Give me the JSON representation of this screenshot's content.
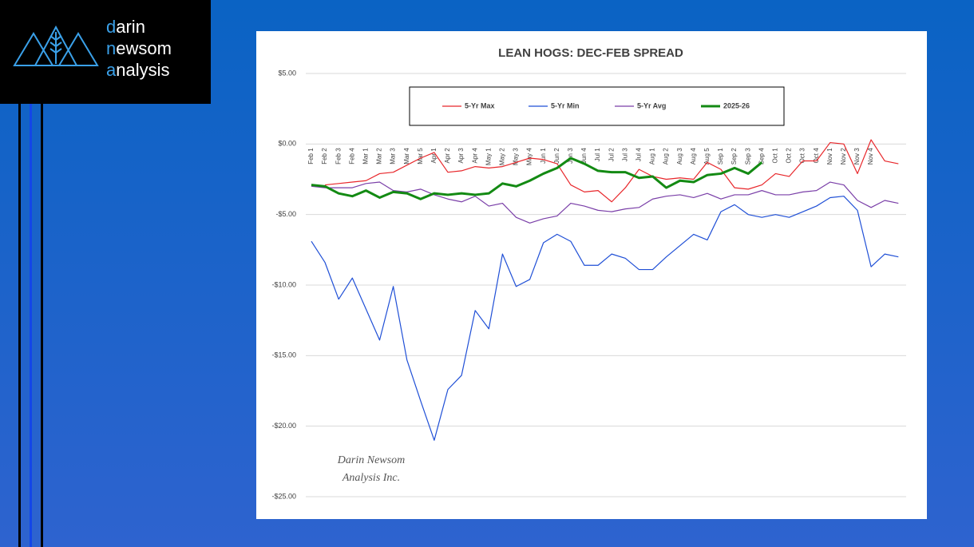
{
  "logo": {
    "lines": [
      "darin",
      "newsom",
      "analysis"
    ]
  },
  "chart_data": {
    "type": "line",
    "title": "LEAN HOGS: DEC-FEB SPREAD",
    "watermark": [
      "Darin Newsom",
      "Analysis Inc."
    ],
    "categories": [
      "Feb 1",
      "Feb 2",
      "Feb 3",
      "Feb 4",
      "Mar 1",
      "Mar 2",
      "Mar 3",
      "Mar 4",
      "Mar 5",
      "Apr 1",
      "Apr 2",
      "Apr 3",
      "Apr 4",
      "May 1",
      "May 2",
      "May 3",
      "May 4",
      "Jun 1",
      "Jun 2",
      "Jun 3",
      "Jun 4",
      "Jul 1",
      "Jul 2",
      "Jul 3",
      "Jul 4",
      "Aug 1",
      "Aug 2",
      "Aug 3",
      "Aug 4",
      "Aug 5",
      "Sep 1",
      "Sep 2",
      "Sep 3",
      "Sep 4",
      "Oct 1",
      "Oct 2",
      "Oct 3",
      "Oct 4",
      "Nov 1",
      "Nov 2",
      "Nov 3",
      "Nov 4",
      null,
      null
    ],
    "series": [
      {
        "name": "5-Yr Max",
        "color": "#e8262a",
        "width": 1.2,
        "values": [
          null,
          -2.9,
          -2.8,
          -2.7,
          -2.6,
          -2.1,
          -2.0,
          -1.5,
          -1.0,
          -0.6,
          -2.0,
          -1.9,
          -1.6,
          -1.7,
          -1.6,
          -1.3,
          -1.0,
          -1.1,
          -1.4,
          -2.9,
          -3.4,
          -3.3,
          -4.1,
          -3.1,
          -1.8,
          -2.3,
          -2.5,
          -2.4,
          -2.5,
          -1.3,
          -1.8,
          -3.1,
          -3.2,
          -2.9,
          -2.1,
          -2.3,
          -1.2,
          -1.2,
          0.1,
          0.0,
          -2.1,
          0.3,
          -1.2,
          -1.4
        ]
      },
      {
        "name": "5-Yr Min",
        "color": "#1f4fd6",
        "width": 1.2,
        "values": [
          -6.9,
          -8.4,
          -11.0,
          -9.5,
          -11.7,
          -13.9,
          -10.1,
          -15.3,
          -18.2,
          -21.0,
          -17.4,
          -16.4,
          -11.8,
          -13.1,
          -7.8,
          -10.1,
          -9.6,
          -7.0,
          -6.4,
          -6.9,
          -8.6,
          -8.6,
          -7.8,
          -8.1,
          -8.9,
          -8.9,
          -8.0,
          -7.2,
          -6.4,
          -6.8,
          -4.8,
          -4.3,
          -5.0,
          -5.2,
          -5.0,
          -5.2,
          -4.8,
          -4.4,
          -3.8,
          -3.7,
          -4.7,
          -8.7,
          -7.8,
          -8.0
        ]
      },
      {
        "name": "5-Yr Avg",
        "color": "#7a3fa8",
        "width": 1.2,
        "values": [
          -3.0,
          -3.1,
          -3.1,
          -3.1,
          -2.8,
          -2.7,
          -3.3,
          -3.4,
          -3.2,
          -3.6,
          -3.9,
          -4.1,
          -3.7,
          -4.4,
          -4.2,
          -5.2,
          -5.6,
          -5.3,
          -5.1,
          -4.2,
          -4.4,
          -4.7,
          -4.8,
          -4.6,
          -4.5,
          -3.9,
          -3.7,
          -3.6,
          -3.8,
          -3.5,
          -3.9,
          -3.6,
          -3.6,
          -3.3,
          -3.6,
          -3.6,
          -3.4,
          -3.3,
          -2.7,
          -2.9,
          -4.0,
          -4.5,
          -4.0,
          -4.2
        ]
      },
      {
        "name": "2025-26",
        "color": "#138a13",
        "width": 3,
        "values": [
          -2.9,
          -3.0,
          -3.5,
          -3.7,
          -3.3,
          -3.8,
          -3.4,
          -3.5,
          -3.9,
          -3.5,
          -3.6,
          -3.5,
          -3.6,
          -3.5,
          -2.8,
          -3.0,
          -2.6,
          -2.1,
          -1.7,
          -1.0,
          -1.4,
          -1.9,
          -2.0,
          -2.0,
          -2.4,
          -2.3,
          -3.1,
          -2.6,
          -2.7,
          -2.2,
          -2.1,
          -1.7,
          -2.1,
          -1.3,
          null,
          null,
          null,
          null,
          null,
          null,
          null,
          null,
          null,
          null
        ]
      }
    ],
    "ylim": [
      -25,
      5
    ],
    "yticks": [
      {
        "value": 5,
        "label": "$5.00"
      },
      {
        "value": 0,
        "label": "$0.00"
      },
      {
        "value": -5,
        "label": "-$5.00"
      },
      {
        "value": -10,
        "label": "-$10.00"
      },
      {
        "value": -15,
        "label": "-$15.00"
      },
      {
        "value": -20,
        "label": "-$20.00"
      },
      {
        "value": -25,
        "label": "-$25.00"
      }
    ],
    "grid": true,
    "legend": "top"
  }
}
